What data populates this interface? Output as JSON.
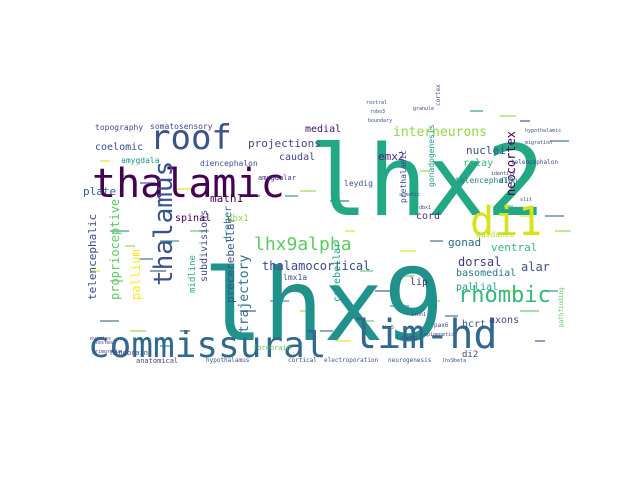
{
  "word_cloud": {
    "words": [
      {
        "text": "lhx9",
        "color": "#21918c"
      },
      {
        "text": "lhx2",
        "color": "#22a884"
      },
      {
        "text": "commissural",
        "color": "#31688e"
      },
      {
        "text": "lim-hd",
        "color": "#31688e"
      },
      {
        "text": "thalamic",
        "color": "#440154"
      },
      {
        "text": "roof",
        "color": "#3b528b"
      },
      {
        "text": "di1",
        "color": "#d8e219"
      },
      {
        "text": "rhombic",
        "color": "#35b779"
      },
      {
        "text": "thalamus",
        "color": "#3b528b"
      },
      {
        "text": "lhx9alpha",
        "color": "#5ec962"
      },
      {
        "text": "interneurons",
        "color": "#90d743"
      },
      {
        "text": "projections",
        "color": "#3e4989"
      },
      {
        "text": "emx2",
        "color": "#482878"
      },
      {
        "text": "nuclei",
        "color": "#3b528b"
      },
      {
        "text": "neocortex",
        "color": "#440154"
      },
      {
        "text": "relay",
        "color": "#35b779"
      },
      {
        "text": "gonad",
        "color": "#31688e"
      },
      {
        "text": "ventral",
        "color": "#35b779"
      },
      {
        "text": "dorsal",
        "color": "#443983"
      },
      {
        "text": "alar",
        "color": "#3b528b"
      },
      {
        "text": "axons",
        "color": "#3e4989"
      },
      {
        "text": "hcrt",
        "color": "#3b528b"
      },
      {
        "text": "di2",
        "color": "#3e4989"
      },
      {
        "text": "telencephalon",
        "color": "#26828e"
      },
      {
        "text": "guidance",
        "color": "#b5de2b"
      },
      {
        "text": "basomedial",
        "color": "#2a788e"
      },
      {
        "text": "pallial",
        "color": "#1f9e89"
      },
      {
        "text": "cord",
        "color": "#472d7b"
      },
      {
        "text": "lip",
        "color": "#482878"
      },
      {
        "text": "thalamocortical",
        "color": "#3e4989"
      },
      {
        "text": "math1",
        "color": "#440154"
      },
      {
        "text": "dbx1",
        "color": "#90d743"
      },
      {
        "text": "trajectory",
        "color": "#2c728e"
      },
      {
        "text": "precerebellar",
        "color": "#3b528b"
      },
      {
        "text": "cerebellar",
        "color": "#1fa188"
      },
      {
        "text": "midline",
        "color": "#27ad81"
      },
      {
        "text": "subdivisions",
        "color": "#3e4989"
      },
      {
        "text": "dreher",
        "color": "#2c728e"
      },
      {
        "text": "pallium",
        "color": "#fde725"
      },
      {
        "text": "proprioceptive",
        "color": "#5ec962"
      },
      {
        "text": "telencephalic",
        "color": "#3e4989"
      },
      {
        "text": "spinal",
        "color": "#440154"
      },
      {
        "text": "caudal",
        "color": "#3e4989"
      },
      {
        "text": "medial",
        "color": "#471063"
      },
      {
        "text": "diencephalon",
        "color": "#3b528b"
      },
      {
        "text": "amygdala",
        "color": "#21918c"
      },
      {
        "text": "amygdalar",
        "color": "#472d7b"
      },
      {
        "text": "somatosensory",
        "color": "#3e4989"
      },
      {
        "text": "topography",
        "color": "#3e4989"
      },
      {
        "text": "coelomic",
        "color": "#3e4989"
      },
      {
        "text": "plate",
        "color": "#355f8d"
      },
      {
        "text": "leydig",
        "color": "#3b528b"
      },
      {
        "text": "prethalamic",
        "color": "#3e4989"
      },
      {
        "text": "gonadogenesis",
        "color": "#1f9e89"
      },
      {
        "text": "di3",
        "color": "#2c728e"
      },
      {
        "text": "lmx1a",
        "color": "#3b528b"
      },
      {
        "text": "anatomical",
        "color": "#3e4989"
      },
      {
        "text": "hypothalamus",
        "color": "#3b528b"
      },
      {
        "text": "cortical",
        "color": "#3e4989"
      },
      {
        "text": "electroporation",
        "color": "#3b528b"
      },
      {
        "text": "neurogenesis",
        "color": "#3b528b"
      },
      {
        "text": "lhx9beta",
        "color": "#3b528b"
      },
      {
        "text": "pax6",
        "color": "#3e4989"
      },
      {
        "text": "pathfinding",
        "color": "#5ec962"
      },
      {
        "text": "telencephalon",
        "color": "#3e4989"
      },
      {
        "text": "identity",
        "color": "#3e4989"
      },
      {
        "text": "granule",
        "color": "#3e4989"
      },
      {
        "text": "cortex",
        "color": "#3b528b"
      },
      {
        "text": "rostral",
        "color": "#3e4989"
      },
      {
        "text": "robo3",
        "color": "#3e4989"
      },
      {
        "text": "boundary",
        "color": "#3b528b"
      },
      {
        "text": "hypothalamic",
        "color": "#3b528b"
      },
      {
        "text": "migration",
        "color": "#3e4989"
      },
      {
        "text": "somatic",
        "color": "#3e4989"
      },
      {
        "text": "atoh1",
        "color": "#3e4989"
      },
      {
        "text": "lateral",
        "color": "#3b528b"
      },
      {
        "text": "lhx5",
        "color": "#3b528b"
      },
      {
        "text": "epigenetic",
        "color": "#3e4989"
      },
      {
        "text": "sf1",
        "color": "#3e4989"
      },
      {
        "text": "hindbrain",
        "color": "#3e4989"
      },
      {
        "text": "slit",
        "color": "#3e4989"
      },
      {
        "text": "dbx1",
        "color": "#3e4989"
      },
      {
        "text": "forebrain",
        "color": "#5ec962"
      },
      {
        "text": "primordium",
        "color": "#3e4989"
      },
      {
        "text": "ovaries",
        "color": "#3e4989"
      },
      {
        "text": "testes",
        "color": "#3e4989"
      }
    ]
  }
}
